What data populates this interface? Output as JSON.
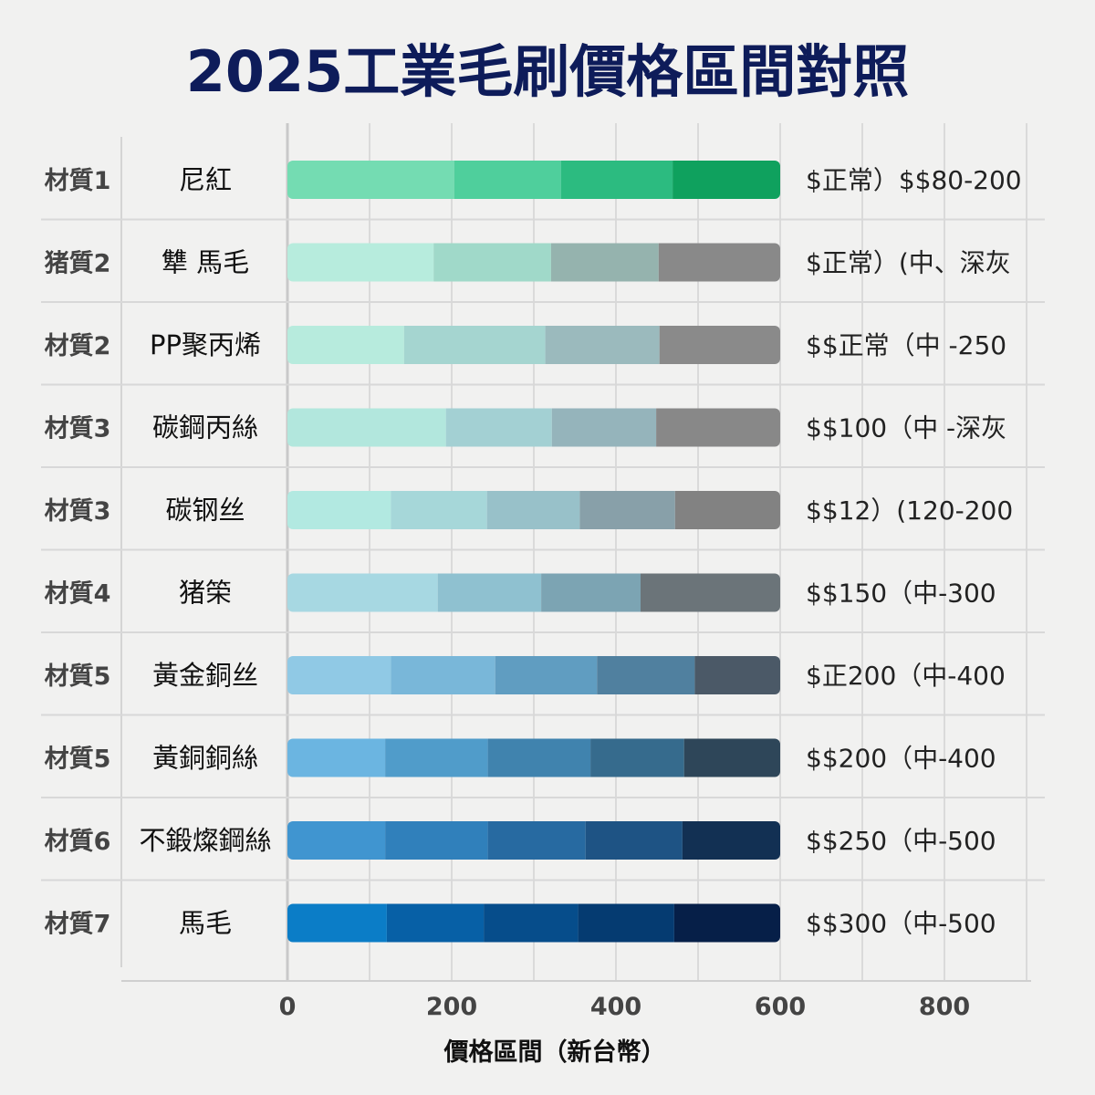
{
  "chart_data": {
    "type": "bar",
    "orientation": "horizontal",
    "stacked": true,
    "title": "2025工業毛刷價格區間對照",
    "xlabel": "價格區間（新台幣）",
    "ylabel": "",
    "xlim": [
      0,
      900
    ],
    "xticks": [
      0,
      200,
      400,
      600,
      800
    ],
    "grid": true,
    "rows": [
      {
        "category": "材質1",
        "name": "尼紅",
        "note": "$正常）$$80-200",
        "segments": [
          [
            0,
            203,
            "#74dcb2"
          ],
          [
            203,
            333,
            "#4fcf9c"
          ],
          [
            333,
            469,
            "#2cbb80"
          ],
          [
            469,
            600,
            "#0fa15e"
          ]
        ]
      },
      {
        "category": "猪質2",
        "name": "犨 馬毛",
        "note": "$正常）(中、深灰",
        "segments": [
          [
            0,
            178,
            "#b7ecdd"
          ],
          [
            178,
            321,
            "#a0d9c9"
          ],
          [
            321,
            452,
            "#95b3ae"
          ],
          [
            452,
            600,
            "#898989"
          ]
        ]
      },
      {
        "category": "材質2",
        "name": "PP聚丙烯",
        "note": "$$正常（中 -250",
        "segments": [
          [
            0,
            142,
            "#b7ebdd"
          ],
          [
            142,
            314,
            "#a5d5d0"
          ],
          [
            314,
            453,
            "#9bbabd"
          ],
          [
            453,
            600,
            "#8a8a8a"
          ]
        ]
      },
      {
        "category": "材質3",
        "name": "碳鋼丙絲",
        "note": "$$100（中 -深灰",
        "segments": [
          [
            0,
            193,
            "#b2e7dd"
          ],
          [
            193,
            322,
            "#a3d0d3"
          ],
          [
            322,
            449,
            "#95b4bb"
          ],
          [
            449,
            600,
            "#888888"
          ]
        ]
      },
      {
        "category": "材質3",
        "name": "碳钢丝",
        "note": "$$12）(120-200",
        "segments": [
          [
            0,
            126,
            "#b2e9e1"
          ],
          [
            126,
            243,
            "#a6d7d9"
          ],
          [
            243,
            356,
            "#98c1c9"
          ],
          [
            356,
            472,
            "#88a0a9"
          ],
          [
            472,
            600,
            "#828282"
          ]
        ]
      },
      {
        "category": "材質4",
        "name": "猪筞",
        "note": "$$150（中-300",
        "segments": [
          [
            0,
            183,
            "#a7d8e2"
          ],
          [
            183,
            309,
            "#8fc1d0"
          ],
          [
            309,
            430,
            "#7ca4b3"
          ],
          [
            430,
            600,
            "#6b7479"
          ]
        ]
      },
      {
        "category": "材質5",
        "name": "黃金銅丝",
        "note": "$正200（中-400",
        "segments": [
          [
            0,
            126,
            "#90c9e5"
          ],
          [
            126,
            253,
            "#79b7d9"
          ],
          [
            253,
            377,
            "#609dc1"
          ],
          [
            377,
            496,
            "#50809f"
          ],
          [
            496,
            600,
            "#4b5967"
          ]
        ]
      },
      {
        "category": "材質5",
        "name": "黃銅銅絲",
        "note": "$$200（中-400",
        "segments": [
          [
            0,
            119,
            "#6bb5e1"
          ],
          [
            119,
            244,
            "#509cca"
          ],
          [
            244,
            369,
            "#4083ae"
          ],
          [
            369,
            483,
            "#366b8d"
          ],
          [
            483,
            600,
            "#2e4659"
          ]
        ]
      },
      {
        "category": "材質6",
        "name": "不鍛燦鋼絲",
        "note": "$$250（中-500",
        "segments": [
          [
            0,
            119,
            "#4095d0"
          ],
          [
            119,
            244,
            "#3080bb"
          ],
          [
            244,
            363,
            "#276aa1"
          ],
          [
            363,
            481,
            "#1e5384"
          ],
          [
            481,
            600,
            "#123053"
          ]
        ]
      },
      {
        "category": "材質7",
        "name": "馬毛",
        "note": "$$300（中-500",
        "segments": [
          [
            0,
            121,
            "#0b7dc7"
          ],
          [
            121,
            239,
            "#0760a6"
          ],
          [
            239,
            354,
            "#064d8b"
          ],
          [
            354,
            471,
            "#053b71"
          ],
          [
            471,
            600,
            "#061f48"
          ]
        ]
      }
    ]
  }
}
